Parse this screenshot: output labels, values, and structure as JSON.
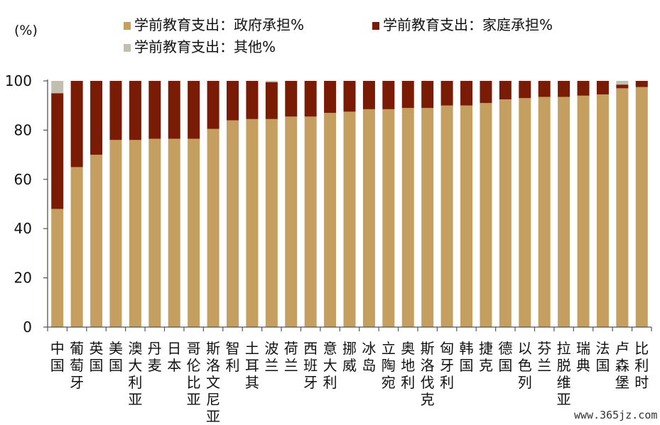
{
  "chart_data": {
    "type": "bar",
    "stacked": true,
    "unit_label": "(%)",
    "ylim": [
      0,
      100
    ],
    "yticks": [
      0,
      20,
      40,
      60,
      80,
      100
    ],
    "legend_position": "top",
    "categories": [
      "中国",
      "葡萄牙",
      "英国",
      "美国",
      "澳大利亚",
      "丹麦",
      "日本",
      "哥伦比亚",
      "斯洛文尼亚",
      "智利",
      "土耳其",
      "波兰",
      "荷兰",
      "西班牙",
      "意大利",
      "挪威",
      "冰岛",
      "立陶宛",
      "奥地利",
      "斯洛伐克",
      "匈牙利",
      "韩国",
      "捷克",
      "德国",
      "以色列",
      "芬兰",
      "拉脱维亚",
      "瑞典",
      "法国",
      "卢森堡",
      "比利时"
    ],
    "series": [
      {
        "name": "学前教育支出：政府承担%",
        "color": "#C49F5F",
        "values": [
          48,
          65,
          70,
          76,
          76,
          76.5,
          76.5,
          76.5,
          80.5,
          84,
          84.5,
          84.5,
          85.5,
          85.5,
          87,
          87.5,
          88.5,
          88.5,
          89,
          89,
          90,
          90,
          91,
          92.5,
          93,
          93.5,
          93.5,
          94,
          94.5,
          97,
          97.5
        ]
      },
      {
        "name": "学前教育支出：家庭承担%",
        "color": "#7A1B05",
        "values": [
          47,
          35,
          30,
          24,
          24,
          23.5,
          23.5,
          23.5,
          19.5,
          16,
          15.5,
          15,
          14.5,
          14.5,
          13,
          12.5,
          11.5,
          11.5,
          11,
          11,
          10,
          10,
          9,
          7.5,
          7,
          6.5,
          6.5,
          6,
          5.5,
          1.5,
          2.5
        ]
      },
      {
        "name": "学前教育支出：其他%",
        "color": "#C2BFB0",
        "values": [
          5,
          0,
          0,
          0,
          0,
          0,
          0,
          0,
          0,
          0,
          0,
          0.5,
          0,
          0,
          0,
          0,
          0,
          0,
          0,
          0,
          0,
          0,
          0,
          0,
          0,
          0,
          0,
          0,
          0,
          1.5,
          0
        ]
      }
    ]
  },
  "watermark": "www.365jz.com"
}
